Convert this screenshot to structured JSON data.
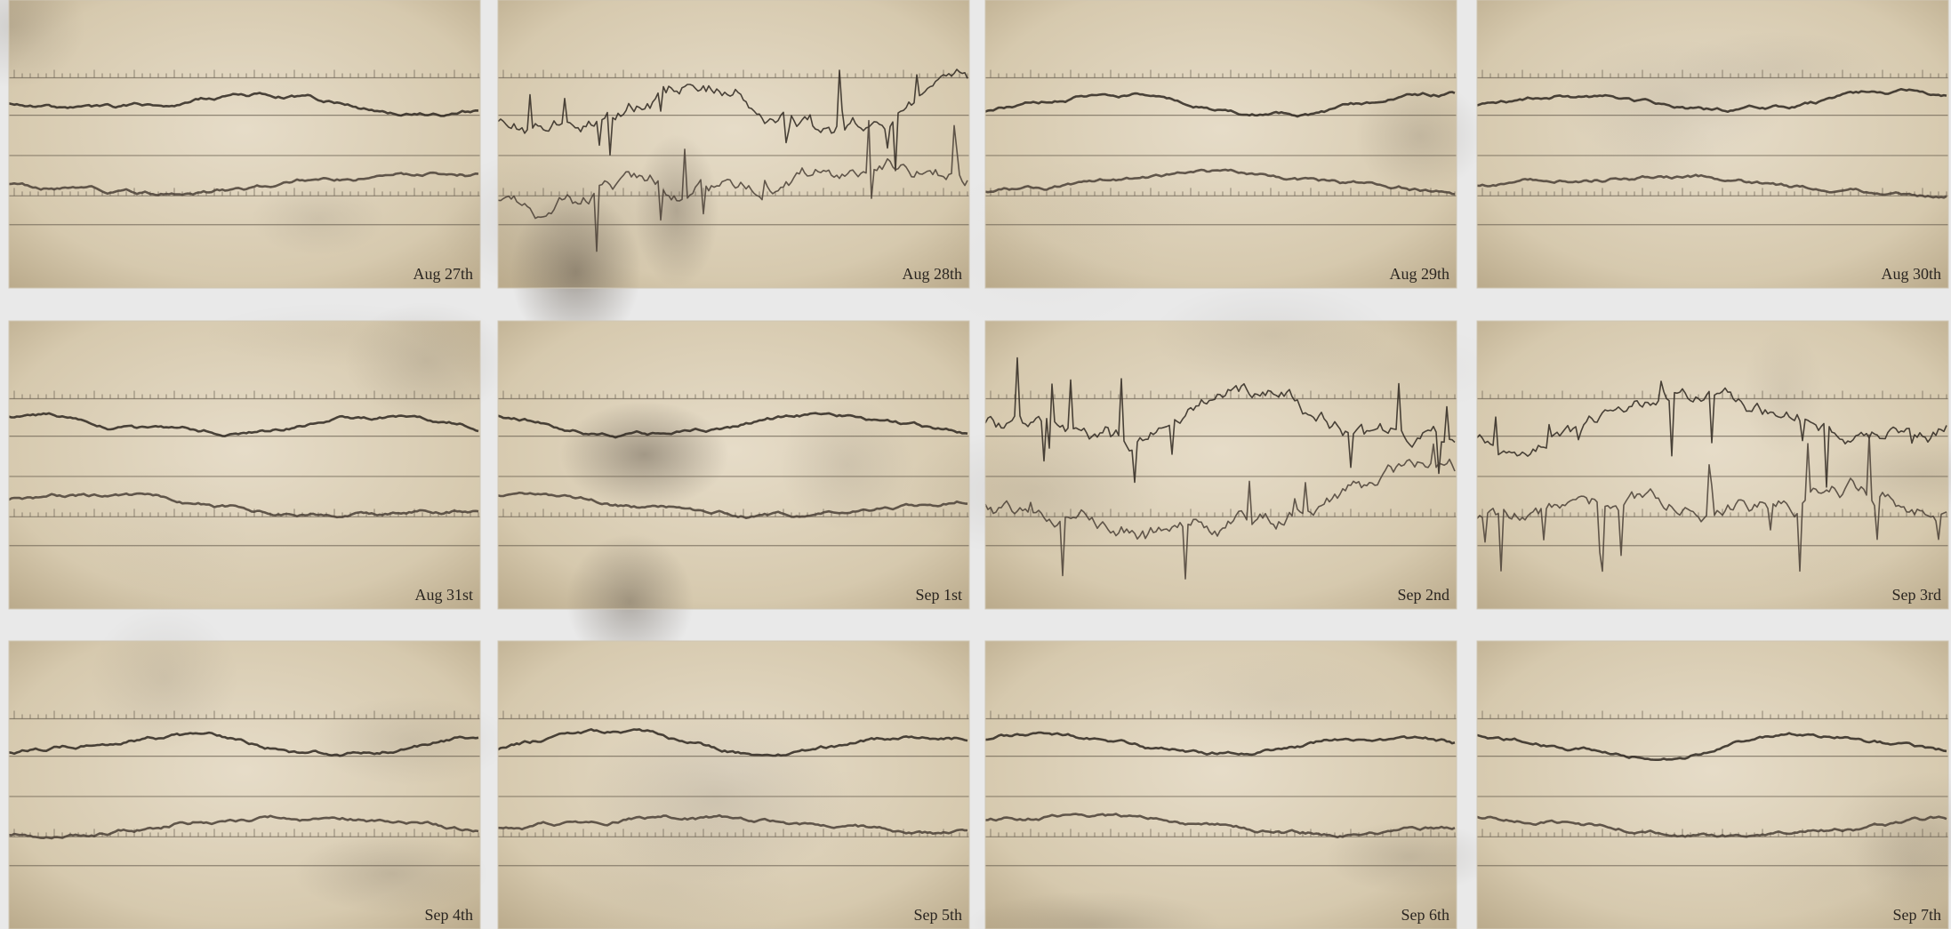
{
  "tiles": [
    {
      "label": "Aug 27th"
    },
    {
      "label": "Aug 28th"
    },
    {
      "label": "Aug 29th"
    },
    {
      "label": "Aug 30th"
    },
    {
      "label": "Aug 31st"
    },
    {
      "label": "Sep 1st"
    },
    {
      "label": "Sep 2nd"
    },
    {
      "label": "Sep 3rd"
    },
    {
      "label": "Sep 4th"
    },
    {
      "label": "Sep 5th"
    },
    {
      "label": "Sep 6th"
    },
    {
      "label": "Sep 7th"
    }
  ]
}
